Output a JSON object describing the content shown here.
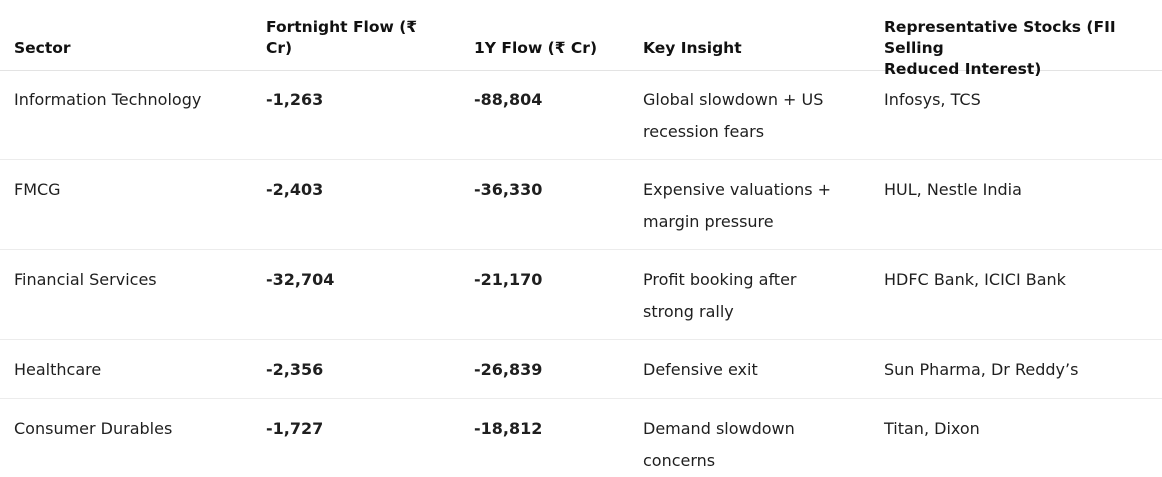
{
  "table": {
    "headers": [
      "Sector",
      "Fortnight Flow (₹ Cr)",
      "1Y Flow (₹ Cr)",
      "Key Insight",
      "Representative Stocks (FII Selling Reduced Interest)"
    ],
    "header_lines": {
      "fortnight_line1": "Fortnight Flow (₹",
      "fortnight_line2": "Cr)",
      "stocks_line1": "Representative Stocks (FII Selling",
      "stocks_line2": "Reduced Interest)"
    },
    "rows": [
      {
        "sector": "Information Technology",
        "fortnight": "-1,263",
        "oney": "-88,804",
        "insight_line1": "Global slowdown + US",
        "insight_line2": "recession fears",
        "stocks": "Infosys, TCS"
      },
      {
        "sector": "FMCG",
        "fortnight": "-2,403",
        "oney": "-36,330",
        "insight_line1": "Expensive valuations +",
        "insight_line2": "margin pressure",
        "stocks": "HUL, Nestle India"
      },
      {
        "sector": "Financial Services",
        "fortnight": "-32,704",
        "oney": "-21,170",
        "insight_line1": "Profit booking after",
        "insight_line2": "strong rally",
        "stocks": "HDFC Bank, ICICI Bank"
      },
      {
        "sector": "Healthcare",
        "fortnight": "-2,356",
        "oney": "-26,839",
        "insight_line1": "Defensive exit",
        "insight_line2": "",
        "stocks": "Sun Pharma, Dr Reddy’s"
      },
      {
        "sector": "Consumer Durables",
        "fortnight": "-1,727",
        "oney": "-18,812",
        "insight_line1": "Demand slowdown",
        "insight_line2": "concerns",
        "stocks": "Titan, Dixon"
      }
    ]
  }
}
